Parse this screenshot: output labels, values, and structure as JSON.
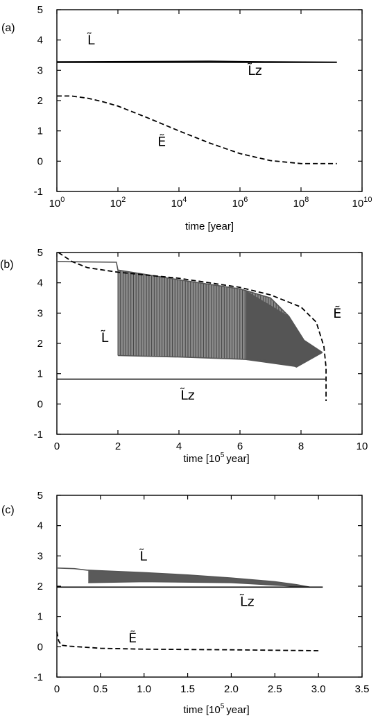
{
  "chart_data": [
    {
      "panel_label": "(a)",
      "type": "line",
      "xlabel": "time [year]",
      "x_scale": "log",
      "xlim": [
        1,
        10000000000
      ],
      "ylim": [
        -1,
        5
      ],
      "x_ticks": [
        {
          "value": 1,
          "base": "10",
          "exp": "0"
        },
        {
          "value": 100,
          "base": "10",
          "exp": "2"
        },
        {
          "value": 10000,
          "base": "10",
          "exp": "4"
        },
        {
          "value": 1000000,
          "base": "10",
          "exp": "6"
        },
        {
          "value": 100000000,
          "base": "10",
          "exp": "8"
        },
        {
          "value": 10000000000,
          "base": "10",
          "exp": "10"
        }
      ],
      "y_ticks": [
        "-1",
        "0",
        "1",
        "2",
        "3",
        "4",
        "5"
      ],
      "grid": false,
      "series": [
        {
          "name": "L̃",
          "style": "solid",
          "color": "#000000",
          "points": [
            [
              1,
              3.28
            ],
            [
              100000,
              3.3
            ],
            [
              10000000,
              3.28
            ],
            [
              1500000000,
              3.27
            ]
          ]
        },
        {
          "name": "L̃z",
          "style": "solid",
          "color": "#000000",
          "points": [
            [
              1,
              3.26
            ],
            [
              1500000000,
              3.26
            ]
          ]
        },
        {
          "name": "Ẽ",
          "style": "dashed",
          "color": "#000000",
          "points": [
            [
              1,
              2.15
            ],
            [
              3,
              2.15
            ],
            [
              10,
              2.08
            ],
            [
              30,
              1.97
            ],
            [
              100,
              1.82
            ],
            [
              1000,
              1.42
            ],
            [
              10000,
              1.0
            ],
            [
              100000,
              0.6
            ],
            [
              1000000,
              0.25
            ],
            [
              10000000,
              0.02
            ],
            [
              100000000,
              -0.08
            ],
            [
              1500000000,
              -0.08
            ]
          ]
        }
      ],
      "annotations": [
        {
          "text": "L̃",
          "x": 10,
          "y": 3.85
        },
        {
          "text": "L̃z",
          "x": 1800000,
          "y": 2.85
        },
        {
          "text": "Ẽ",
          "x": 2000,
          "y": 0.5
        }
      ]
    },
    {
      "panel_label": "(b)",
      "type": "line",
      "xlabel": "time [10⁵ year]",
      "xlabel_parts": {
        "prefix": "time [10",
        "exp": "5",
        "suffix": "year]"
      },
      "x_scale": "linear",
      "xlim": [
        0,
        10
      ],
      "ylim": [
        -1,
        5
      ],
      "x_ticks": [
        "0",
        "2",
        "4",
        "6",
        "8",
        "10"
      ],
      "y_ticks": [
        "-1",
        "0",
        "1",
        "2",
        "3",
        "4",
        "5"
      ],
      "grid": false,
      "series": [
        {
          "name": "L̃ (oscillating, envelope upper)",
          "style": "solid",
          "color": "#555555",
          "points": [
            [
              0,
              4.7
            ],
            [
              1.95,
              4.68
            ],
            [
              2.0,
              4.42
            ],
            [
              4,
              4.1
            ],
            [
              6,
              3.8
            ],
            [
              7,
              3.5
            ],
            [
              7.6,
              2.9
            ],
            [
              8.1,
              2.1
            ],
            [
              8.7,
              1.7
            ]
          ]
        },
        {
          "name": "L̃ (oscillating, envelope lower)",
          "style": "solid",
          "color": "#555555",
          "points": [
            [
              2.0,
              1.6
            ],
            [
              4,
              1.55
            ],
            [
              6,
              1.48
            ],
            [
              7.5,
              1.4
            ],
            [
              7.85,
              1.22
            ],
            [
              8.7,
              1.7
            ]
          ]
        },
        {
          "name": "L̃z",
          "style": "solid",
          "color": "#000000",
          "points": [
            [
              0,
              0.82
            ],
            [
              8.8,
              0.82
            ]
          ]
        },
        {
          "name": "Ẽ",
          "style": "dashed",
          "color": "#000000",
          "points": [
            [
              0.05,
              5.0
            ],
            [
              0.5,
              4.7
            ],
            [
              1,
              4.5
            ],
            [
              2,
              4.35
            ],
            [
              4,
              4.15
            ],
            [
              6,
              3.85
            ],
            [
              7,
              3.6
            ],
            [
              8,
              3.2
            ],
            [
              8.5,
              2.7
            ],
            [
              8.75,
              1.9
            ],
            [
              8.82,
              1.2
            ],
            [
              8.82,
              0.1
            ]
          ]
        }
      ],
      "annotations": [
        {
          "text": "L̃",
          "x": 1.45,
          "y": 2.05
        },
        {
          "text": "L̃z",
          "x": 4.05,
          "y": 0.15
        },
        {
          "text": "Ẽ",
          "x": 9.05,
          "y": 2.85
        }
      ]
    },
    {
      "panel_label": "(c)",
      "type": "line",
      "xlabel": "time [10⁵ year]",
      "xlabel_parts": {
        "prefix": "time [10",
        "exp": "5",
        "suffix": "year]"
      },
      "x_scale": "linear",
      "xlim": [
        0,
        3.5
      ],
      "ylim": [
        -1,
        5
      ],
      "x_ticks": [
        "0",
        "0.5",
        "1.0",
        "1.5",
        "2.0",
        "2.5",
        "3.0",
        "3.5"
      ],
      "y_ticks": [
        "-1",
        "0",
        "1",
        "2",
        "3",
        "4",
        "5"
      ],
      "grid": false,
      "series": [
        {
          "name": "L̃ (upper)",
          "style": "solid",
          "color": "#555555",
          "points": [
            [
              0,
              2.6
            ],
            [
              0.2,
              2.58
            ],
            [
              0.35,
              2.53
            ],
            [
              1.0,
              2.45
            ],
            [
              1.5,
              2.37
            ],
            [
              2.0,
              2.27
            ],
            [
              2.5,
              2.15
            ],
            [
              2.75,
              2.05
            ],
            [
              2.9,
              1.97
            ]
          ]
        },
        {
          "name": "L̃ (lower, oscillating)",
          "style": "solid",
          "color": "#555555",
          "points": [
            [
              0.36,
              2.12
            ],
            [
              1.0,
              2.15
            ],
            [
              2.0,
              2.12
            ],
            [
              2.9,
              1.97
            ]
          ]
        },
        {
          "name": "L̃z",
          "style": "solid",
          "color": "#000000",
          "points": [
            [
              0,
              1.97
            ],
            [
              3.05,
              1.97
            ]
          ]
        },
        {
          "name": "Ẽ",
          "style": "dashed",
          "color": "#000000",
          "points": [
            [
              0,
              0.5
            ],
            [
              0.02,
              0.2
            ],
            [
              0.05,
              0.05
            ],
            [
              0.15,
              0.02
            ],
            [
              0.5,
              -0.05
            ],
            [
              1.0,
              -0.08
            ],
            [
              2.0,
              -0.1
            ],
            [
              3.0,
              -0.13
            ]
          ]
        }
      ],
      "annotations": [
        {
          "text": "L̃",
          "x": 0.95,
          "y": 2.85
        },
        {
          "text": "L̃z",
          "x": 2.1,
          "y": 1.35
        },
        {
          "text": "Ẽ",
          "x": 0.82,
          "y": 0.15
        }
      ]
    }
  ]
}
